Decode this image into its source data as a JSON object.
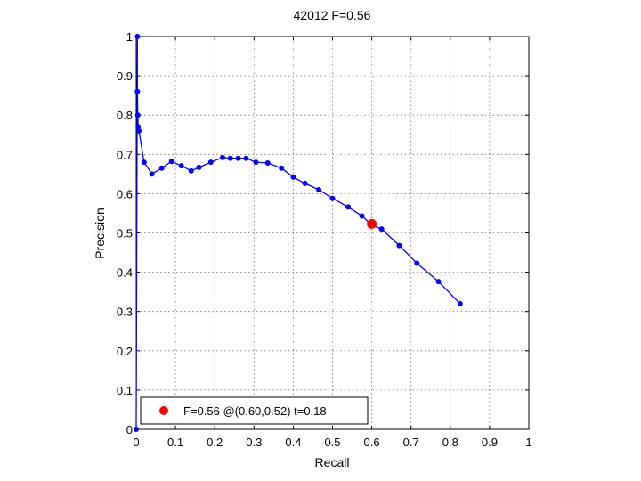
{
  "chart_data": {
    "type": "line",
    "title": "42012 F=0.56",
    "xlabel": "Recall",
    "ylabel": "Precision",
    "xlim": [
      0,
      1
    ],
    "ylim": [
      0,
      1
    ],
    "xticks": [
      "0",
      "0.1",
      "0.2",
      "0.3",
      "0.4",
      "0.5",
      "0.6",
      "0.7",
      "0.8",
      "0.9",
      "1"
    ],
    "yticks": [
      "0",
      "0.1",
      "0.2",
      "0.3",
      "0.4",
      "0.5",
      "0.6",
      "0.7",
      "0.8",
      "0.9",
      "1"
    ],
    "grid": true,
    "legend_position": "bottom-left",
    "series": [
      {
        "color": "#0000ff",
        "marker": "dot",
        "x": [
          0.0,
          0.003,
          0.003,
          0.004,
          0.005,
          0.007,
          0.02,
          0.04,
          0.065,
          0.09,
          0.115,
          0.14,
          0.16,
          0.19,
          0.22,
          0.24,
          0.26,
          0.28,
          0.305,
          0.335,
          0.37,
          0.4,
          0.43,
          0.465,
          0.5,
          0.54,
          0.575,
          0.6,
          0.625,
          0.67,
          0.715,
          0.77,
          0.825
        ],
        "y": [
          0.0,
          1.0,
          0.86,
          0.8,
          0.77,
          0.76,
          0.68,
          0.65,
          0.665,
          0.682,
          0.671,
          0.658,
          0.667,
          0.68,
          0.692,
          0.69,
          0.69,
          0.69,
          0.68,
          0.678,
          0.665,
          0.642,
          0.626,
          0.61,
          0.588,
          0.566,
          0.543,
          0.52,
          0.51,
          0.468,
          0.423,
          0.376,
          0.32
        ]
      }
    ],
    "highlight": {
      "x": 0.6,
      "y": 0.523,
      "color": "#ff0000",
      "legend": "F=0.56 @(0.60,0.52) t=0.18"
    }
  }
}
